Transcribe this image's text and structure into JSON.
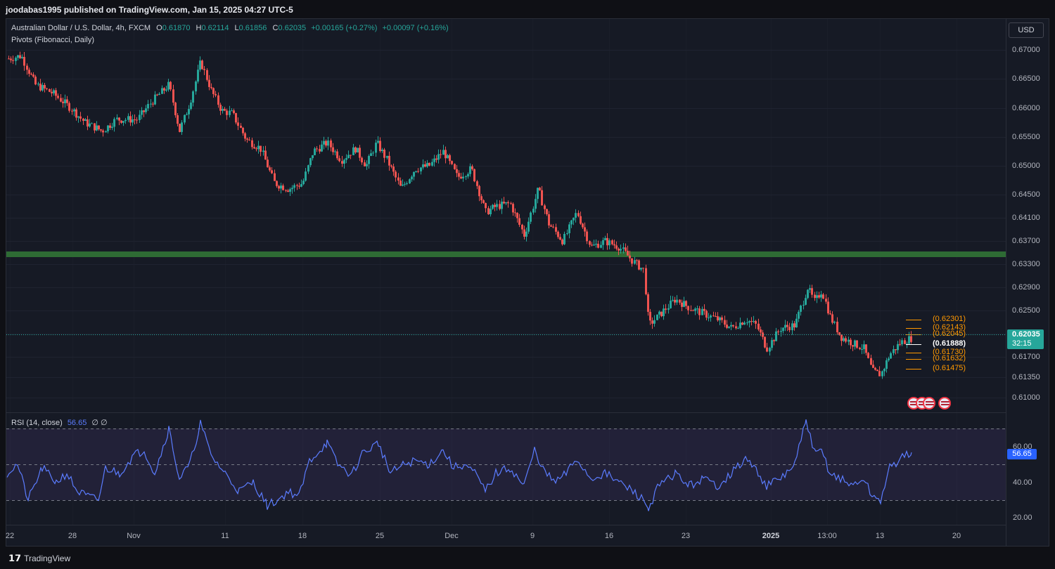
{
  "header": {
    "publisher": "joodabas1995 published on TradingView.com, Jan 15, 2025 04:27 UTC-5"
  },
  "legend": {
    "symbol": "Australian Dollar / U.S. Dollar, 4h, FXCM",
    "open_key": "O",
    "open": "0.61870",
    "high_key": "H",
    "high": "0.62114",
    "low_key": "L",
    "low": "0.61856",
    "close_key": "C",
    "close": "0.62035",
    "change": "+0.00165 (+0.27%)",
    "change2": "+0.00097 (+0.16%)",
    "indicator": "Pivots (Fibonacci, Daily)"
  },
  "currency_button": "USD",
  "price_axis": [
    "0.67000",
    "0.66500",
    "0.66000",
    "0.65500",
    "0.65000",
    "0.64500",
    "0.64100",
    "0.63700",
    "0.63300",
    "0.62900",
    "0.62500",
    "0.62100",
    "0.61700",
    "0.61350",
    "0.61000"
  ],
  "current_price": {
    "price": "0.62035",
    "countdown": "32:15"
  },
  "pivots": [
    {
      "label": "(0.62301)",
      "value": 0.62301,
      "type": "resistance"
    },
    {
      "label": "(0.62143)",
      "value": 0.62143,
      "type": "resistance"
    },
    {
      "label": "(0.62045)",
      "value": 0.62045,
      "type": "resistance"
    },
    {
      "label": "(0.61888)",
      "value": 0.61888,
      "type": "pivot"
    },
    {
      "label": "(0.61730)",
      "value": 0.6173,
      "type": "support"
    },
    {
      "label": "(0.61632)",
      "value": 0.61632,
      "type": "support"
    },
    {
      "label": "(0.61475)",
      "value": 0.61475,
      "type": "support"
    }
  ],
  "rsi": {
    "legend": "RSI (14, close)",
    "value": "56.65",
    "extra": "∅  ∅",
    "axis": [
      "60.00",
      "40.00",
      "20.00"
    ],
    "upper_band": 70,
    "middle": 50,
    "lower_band": 30
  },
  "time_axis": [
    {
      "label": "22",
      "bold": false
    },
    {
      "label": "28",
      "bold": false
    },
    {
      "label": "Nov",
      "bold": false
    },
    {
      "label": "11",
      "bold": false
    },
    {
      "label": "18",
      "bold": false
    },
    {
      "label": "25",
      "bold": false
    },
    {
      "label": "Dec",
      "bold": false
    },
    {
      "label": "9",
      "bold": false
    },
    {
      "label": "16",
      "bold": false
    },
    {
      "label": "23",
      "bold": false
    },
    {
      "label": "2025",
      "bold": true
    },
    {
      "label": "13:00",
      "bold": false
    },
    {
      "label": "13",
      "bold": false
    },
    {
      "label": "20",
      "bold": false
    }
  ],
  "support_zone": {
    "low": 0.6345,
    "high": 0.6353,
    "color": "#2e6b34"
  },
  "colors": {
    "up": "#26a69a",
    "down": "#ef5350",
    "rsi_line": "#5b7cff",
    "pivot": "#ff9800"
  },
  "footer": {
    "brand": "TradingView",
    "logo_icon": "tradingview-logo-icon"
  }
}
